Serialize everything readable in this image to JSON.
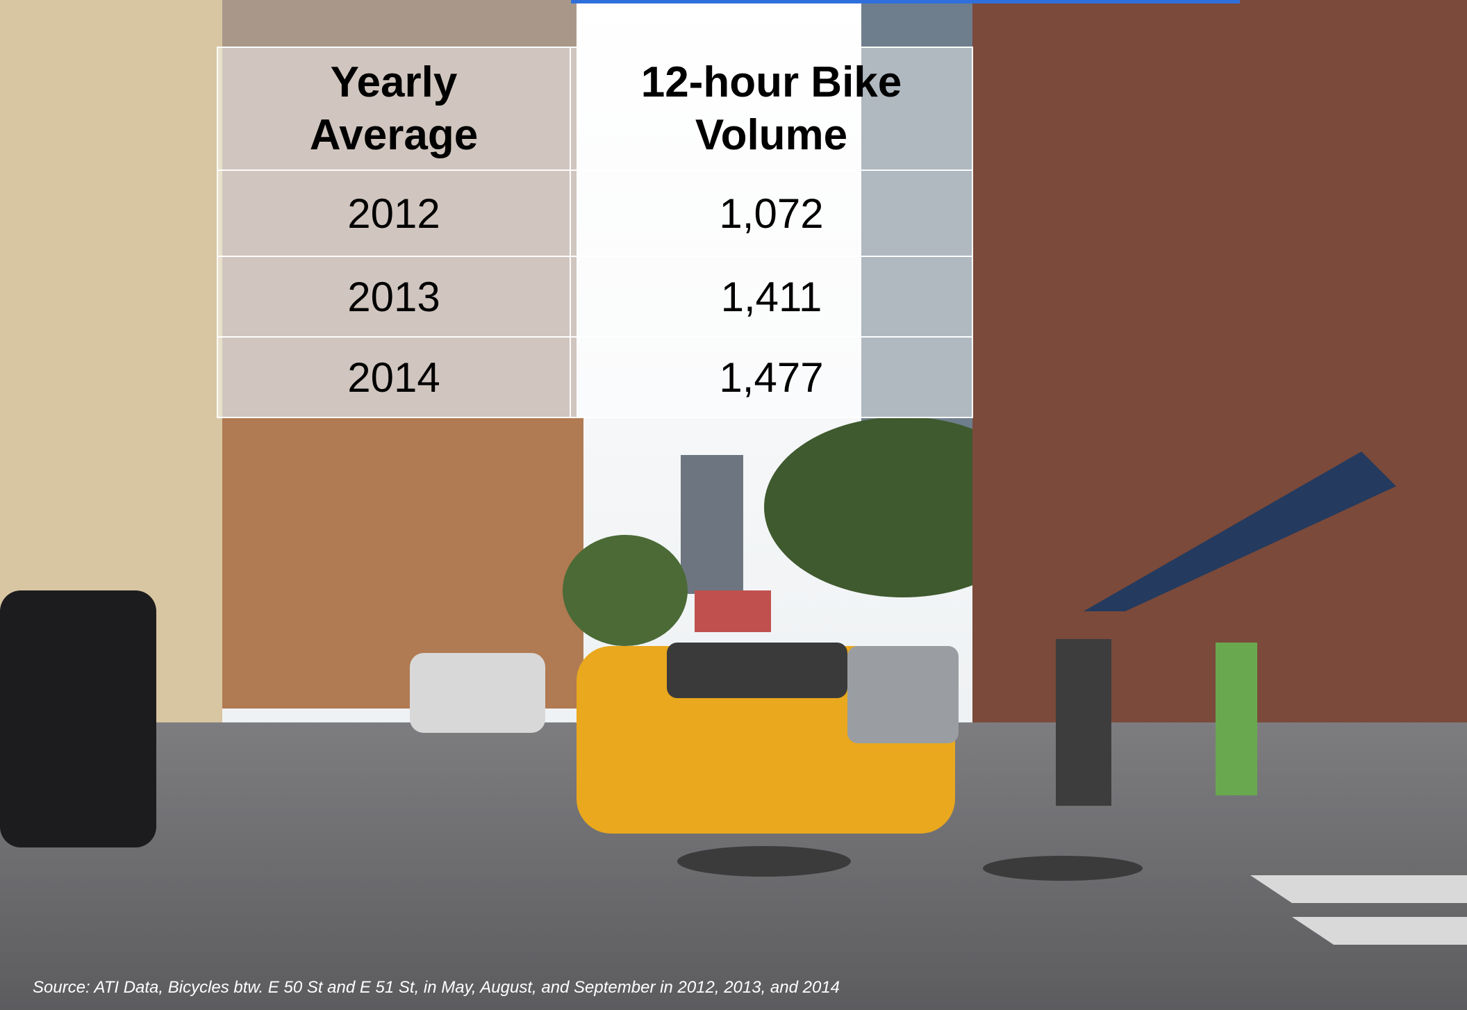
{
  "table": {
    "header": [
      "Yearly Average",
      "12-hour Bike Volume"
    ],
    "rows": [
      [
        "2012",
        "1,072"
      ],
      [
        "2013",
        "1,411"
      ],
      [
        "2014",
        "1,477"
      ]
    ]
  },
  "source": "Source: ATI Data, Bicycles  btw. E 50 St and E 51 St, in May, August, and September in 2012, 2013, and 2014"
}
